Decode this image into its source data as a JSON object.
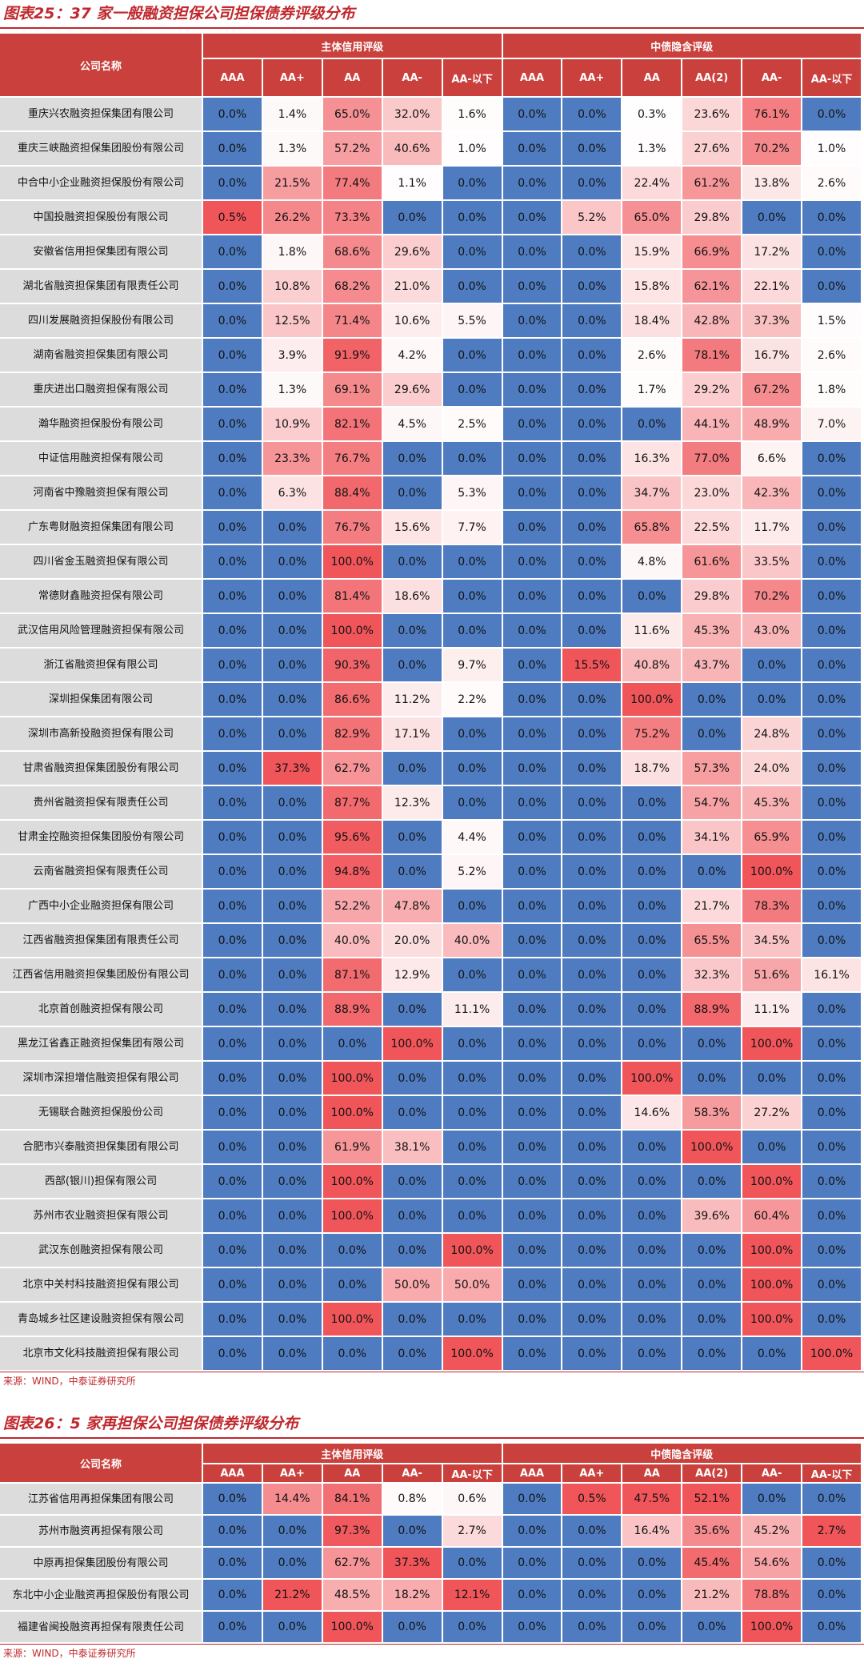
{
  "colors": {
    "zero": "#4f7cc0",
    "low": "#ffffff",
    "high": "#f0555a"
  },
  "table1": {
    "title": "图表25：37 家一般融资担保公司担保债券评级分布",
    "header": {
      "name": "公司名称",
      "groups": [
        "主体信用评级",
        "中债隐含评级"
      ],
      "columns": [
        "AAA",
        "AA+",
        "AA",
        "AA-",
        "AA-以下",
        "AAA",
        "AA+",
        "AA",
        "AA(2)",
        "AA-",
        "AA-以下"
      ]
    },
    "rows": [
      {
        "name": "重庆兴农融资担保集团有限公司",
        "values": [
          "0.0%",
          "1.4%",
          "65.0%",
          "32.0%",
          "1.6%",
          "0.0%",
          "0.0%",
          "0.3%",
          "23.6%",
          "76.1%",
          "0.0%"
        ]
      },
      {
        "name": "重庆三峡融资担保集团股份有限公司",
        "values": [
          "0.0%",
          "1.3%",
          "57.2%",
          "40.6%",
          "1.0%",
          "0.0%",
          "0.0%",
          "1.3%",
          "27.6%",
          "70.2%",
          "1.0%"
        ]
      },
      {
        "name": "中合中小企业融资担保股份有限公司",
        "values": [
          "0.0%",
          "21.5%",
          "77.4%",
          "1.1%",
          "0.0%",
          "0.0%",
          "0.0%",
          "22.4%",
          "61.2%",
          "13.8%",
          "2.6%"
        ]
      },
      {
        "name": "中国投融资担保股份有限公司",
        "values": [
          "0.5%",
          "26.2%",
          "73.3%",
          "0.0%",
          "0.0%",
          "0.0%",
          "5.2%",
          "65.0%",
          "29.8%",
          "0.0%",
          "0.0%"
        ]
      },
      {
        "name": "安徽省信用担保集团有限公司",
        "values": [
          "0.0%",
          "1.8%",
          "68.6%",
          "29.6%",
          "0.0%",
          "0.0%",
          "0.0%",
          "15.9%",
          "66.9%",
          "17.2%",
          "0.0%"
        ]
      },
      {
        "name": "湖北省融资担保集团有限责任公司",
        "values": [
          "0.0%",
          "10.8%",
          "68.2%",
          "21.0%",
          "0.0%",
          "0.0%",
          "0.0%",
          "15.8%",
          "62.1%",
          "22.1%",
          "0.0%"
        ]
      },
      {
        "name": "四川发展融资担保股份有限公司",
        "values": [
          "0.0%",
          "12.5%",
          "71.4%",
          "10.6%",
          "5.5%",
          "0.0%",
          "0.0%",
          "18.4%",
          "42.8%",
          "37.3%",
          "1.5%"
        ]
      },
      {
        "name": "湖南省融资担保集团有限公司",
        "values": [
          "0.0%",
          "3.9%",
          "91.9%",
          "4.2%",
          "0.0%",
          "0.0%",
          "0.0%",
          "2.6%",
          "78.1%",
          "16.7%",
          "2.6%"
        ]
      },
      {
        "name": "重庆进出口融资担保有限公司",
        "values": [
          "0.0%",
          "1.3%",
          "69.1%",
          "29.6%",
          "0.0%",
          "0.0%",
          "0.0%",
          "1.7%",
          "29.2%",
          "67.2%",
          "1.8%"
        ]
      },
      {
        "name": "瀚华融资担保股份有限公司",
        "values": [
          "0.0%",
          "10.9%",
          "82.1%",
          "4.5%",
          "2.5%",
          "0.0%",
          "0.0%",
          "0.0%",
          "44.1%",
          "48.9%",
          "7.0%"
        ]
      },
      {
        "name": "中证信用融资担保有限公司",
        "values": [
          "0.0%",
          "23.3%",
          "76.7%",
          "0.0%",
          "0.0%",
          "0.0%",
          "0.0%",
          "16.3%",
          "77.0%",
          "6.6%",
          "0.0%"
        ]
      },
      {
        "name": "河南省中豫融资担保有限公司",
        "values": [
          "0.0%",
          "6.3%",
          "88.4%",
          "0.0%",
          "5.3%",
          "0.0%",
          "0.0%",
          "34.7%",
          "23.0%",
          "42.3%",
          "0.0%"
        ]
      },
      {
        "name": "广东粤财融资担保集团有限公司",
        "values": [
          "0.0%",
          "0.0%",
          "76.7%",
          "15.6%",
          "7.7%",
          "0.0%",
          "0.0%",
          "65.8%",
          "22.5%",
          "11.7%",
          "0.0%"
        ]
      },
      {
        "name": "四川省金玉融资担保有限公司",
        "values": [
          "0.0%",
          "0.0%",
          "100.0%",
          "0.0%",
          "0.0%",
          "0.0%",
          "0.0%",
          "4.8%",
          "61.6%",
          "33.5%",
          "0.0%"
        ]
      },
      {
        "name": "常德财鑫融资担保有限公司",
        "values": [
          "0.0%",
          "0.0%",
          "81.4%",
          "18.6%",
          "0.0%",
          "0.0%",
          "0.0%",
          "0.0%",
          "29.8%",
          "70.2%",
          "0.0%"
        ]
      },
      {
        "name": "武汉信用风险管理融资担保有限公司",
        "values": [
          "0.0%",
          "0.0%",
          "100.0%",
          "0.0%",
          "0.0%",
          "0.0%",
          "0.0%",
          "11.6%",
          "45.3%",
          "43.0%",
          "0.0%"
        ]
      },
      {
        "name": "浙江省融资担保有限公司",
        "values": [
          "0.0%",
          "0.0%",
          "90.3%",
          "0.0%",
          "9.7%",
          "0.0%",
          "15.5%",
          "40.8%",
          "43.7%",
          "0.0%",
          "0.0%"
        ]
      },
      {
        "name": "深圳担保集团有限公司",
        "values": [
          "0.0%",
          "0.0%",
          "86.6%",
          "11.2%",
          "2.2%",
          "0.0%",
          "0.0%",
          "100.0%",
          "0.0%",
          "0.0%",
          "0.0%"
        ]
      },
      {
        "name": "深圳市高新投融资担保有限公司",
        "values": [
          "0.0%",
          "0.0%",
          "82.9%",
          "17.1%",
          "0.0%",
          "0.0%",
          "0.0%",
          "75.2%",
          "0.0%",
          "24.8%",
          "0.0%"
        ]
      },
      {
        "name": "甘肃省融资担保集团股份有限公司",
        "values": [
          "0.0%",
          "37.3%",
          "62.7%",
          "0.0%",
          "0.0%",
          "0.0%",
          "0.0%",
          "18.7%",
          "57.3%",
          "24.0%",
          "0.0%"
        ]
      },
      {
        "name": "贵州省融资担保有限责任公司",
        "values": [
          "0.0%",
          "0.0%",
          "87.7%",
          "12.3%",
          "0.0%",
          "0.0%",
          "0.0%",
          "0.0%",
          "54.7%",
          "45.3%",
          "0.0%"
        ]
      },
      {
        "name": "甘肃金控融资担保集团股份有限公司",
        "values": [
          "0.0%",
          "0.0%",
          "95.6%",
          "0.0%",
          "4.4%",
          "0.0%",
          "0.0%",
          "0.0%",
          "34.1%",
          "65.9%",
          "0.0%"
        ]
      },
      {
        "name": "云南省融资担保有限责任公司",
        "values": [
          "0.0%",
          "0.0%",
          "94.8%",
          "0.0%",
          "5.2%",
          "0.0%",
          "0.0%",
          "0.0%",
          "0.0%",
          "100.0%",
          "0.0%"
        ]
      },
      {
        "name": "广西中小企业融资担保有限公司",
        "values": [
          "0.0%",
          "0.0%",
          "52.2%",
          "47.8%",
          "0.0%",
          "0.0%",
          "0.0%",
          "0.0%",
          "21.7%",
          "78.3%",
          "0.0%"
        ]
      },
      {
        "name": "江西省融资担保集团有限责任公司",
        "values": [
          "0.0%",
          "0.0%",
          "40.0%",
          "20.0%",
          "40.0%",
          "0.0%",
          "0.0%",
          "0.0%",
          "65.5%",
          "34.5%",
          "0.0%"
        ]
      },
      {
        "name": "江西省信用融资担保集团股份有限公司",
        "values": [
          "0.0%",
          "0.0%",
          "87.1%",
          "12.9%",
          "0.0%",
          "0.0%",
          "0.0%",
          "0.0%",
          "32.3%",
          "51.6%",
          "16.1%"
        ]
      },
      {
        "name": "北京首创融资担保有限公司",
        "values": [
          "0.0%",
          "0.0%",
          "88.9%",
          "0.0%",
          "11.1%",
          "0.0%",
          "0.0%",
          "0.0%",
          "88.9%",
          "11.1%",
          "0.0%"
        ]
      },
      {
        "name": "黑龙江省鑫正融资担保集团有限公司",
        "values": [
          "0.0%",
          "0.0%",
          "0.0%",
          "100.0%",
          "0.0%",
          "0.0%",
          "0.0%",
          "0.0%",
          "0.0%",
          "100.0%",
          "0.0%"
        ]
      },
      {
        "name": "深圳市深担增信融资担保有限公司",
        "values": [
          "0.0%",
          "0.0%",
          "100.0%",
          "0.0%",
          "0.0%",
          "0.0%",
          "0.0%",
          "100.0%",
          "0.0%",
          "0.0%",
          "0.0%"
        ]
      },
      {
        "name": "无锡联合融资担保股份公司",
        "values": [
          "0.0%",
          "0.0%",
          "100.0%",
          "0.0%",
          "0.0%",
          "0.0%",
          "0.0%",
          "14.6%",
          "58.3%",
          "27.2%",
          "0.0%"
        ]
      },
      {
        "name": "合肥市兴泰融资担保集团有限公司",
        "values": [
          "0.0%",
          "0.0%",
          "61.9%",
          "38.1%",
          "0.0%",
          "0.0%",
          "0.0%",
          "0.0%",
          "100.0%",
          "0.0%",
          "0.0%"
        ]
      },
      {
        "name": "西部(银川)担保有限公司",
        "values": [
          "0.0%",
          "0.0%",
          "100.0%",
          "0.0%",
          "0.0%",
          "0.0%",
          "0.0%",
          "0.0%",
          "0.0%",
          "100.0%",
          "0.0%"
        ]
      },
      {
        "name": "苏州市农业融资担保有限公司",
        "values": [
          "0.0%",
          "0.0%",
          "100.0%",
          "0.0%",
          "0.0%",
          "0.0%",
          "0.0%",
          "0.0%",
          "39.6%",
          "60.4%",
          "0.0%"
        ]
      },
      {
        "name": "武汉东创融资担保有限公司",
        "values": [
          "0.0%",
          "0.0%",
          "0.0%",
          "0.0%",
          "100.0%",
          "0.0%",
          "0.0%",
          "0.0%",
          "0.0%",
          "100.0%",
          "0.0%"
        ]
      },
      {
        "name": "北京中关村科技融资担保有限公司",
        "values": [
          "0.0%",
          "0.0%",
          "0.0%",
          "50.0%",
          "50.0%",
          "0.0%",
          "0.0%",
          "0.0%",
          "0.0%",
          "100.0%",
          "0.0%"
        ]
      },
      {
        "name": "青岛城乡社区建设融资担保有限公司",
        "values": [
          "0.0%",
          "0.0%",
          "100.0%",
          "0.0%",
          "0.0%",
          "0.0%",
          "0.0%",
          "0.0%",
          "0.0%",
          "100.0%",
          "0.0%"
        ]
      },
      {
        "name": "北京市文化科技融资担保有限公司",
        "values": [
          "0.0%",
          "0.0%",
          "0.0%",
          "0.0%",
          "100.0%",
          "0.0%",
          "0.0%",
          "0.0%",
          "0.0%",
          "0.0%",
          "100.0%"
        ]
      }
    ],
    "source": "来源：WIND，中泰证券研究所"
  },
  "table2": {
    "title": "图表26：5 家再担保公司担保债券评级分布",
    "header": {
      "name": "公司名称",
      "groups": [
        "主体信用评级",
        "中债隐含评级"
      ],
      "columns": [
        "AAA",
        "AA+",
        "AA",
        "AA-",
        "AA-以下",
        "AAA",
        "AA+",
        "AA",
        "AA(2)",
        "AA-",
        "AA-以下"
      ]
    },
    "rows": [
      {
        "name": "江苏省信用再担保集团有限公司",
        "values": [
          "0.0%",
          "14.4%",
          "84.1%",
          "0.8%",
          "0.6%",
          "0.0%",
          "0.5%",
          "47.5%",
          "52.1%",
          "0.0%",
          "0.0%"
        ]
      },
      {
        "name": "苏州市融资再担保有限公司",
        "values": [
          "0.0%",
          "0.0%",
          "97.3%",
          "0.0%",
          "2.7%",
          "0.0%",
          "0.0%",
          "16.4%",
          "35.6%",
          "45.2%",
          "2.7%"
        ]
      },
      {
        "name": "中原再担保集团股份有限公司",
        "values": [
          "0.0%",
          "0.0%",
          "62.7%",
          "37.3%",
          "0.0%",
          "0.0%",
          "0.0%",
          "0.0%",
          "45.4%",
          "54.6%",
          "0.0%"
        ]
      },
      {
        "name": "东北中小企业融资再担保股份有限公司",
        "values": [
          "0.0%",
          "21.2%",
          "48.5%",
          "18.2%",
          "12.1%",
          "0.0%",
          "0.0%",
          "0.0%",
          "21.2%",
          "78.8%",
          "0.0%"
        ]
      },
      {
        "name": "福建省闽投融资再担保有限责任公司",
        "values": [
          "0.0%",
          "0.0%",
          "100.0%",
          "0.0%",
          "0.0%",
          "0.0%",
          "0.0%",
          "0.0%",
          "0.0%",
          "100.0%",
          "0.0%"
        ]
      }
    ],
    "source": "来源：WIND，中泰证券研究所"
  }
}
